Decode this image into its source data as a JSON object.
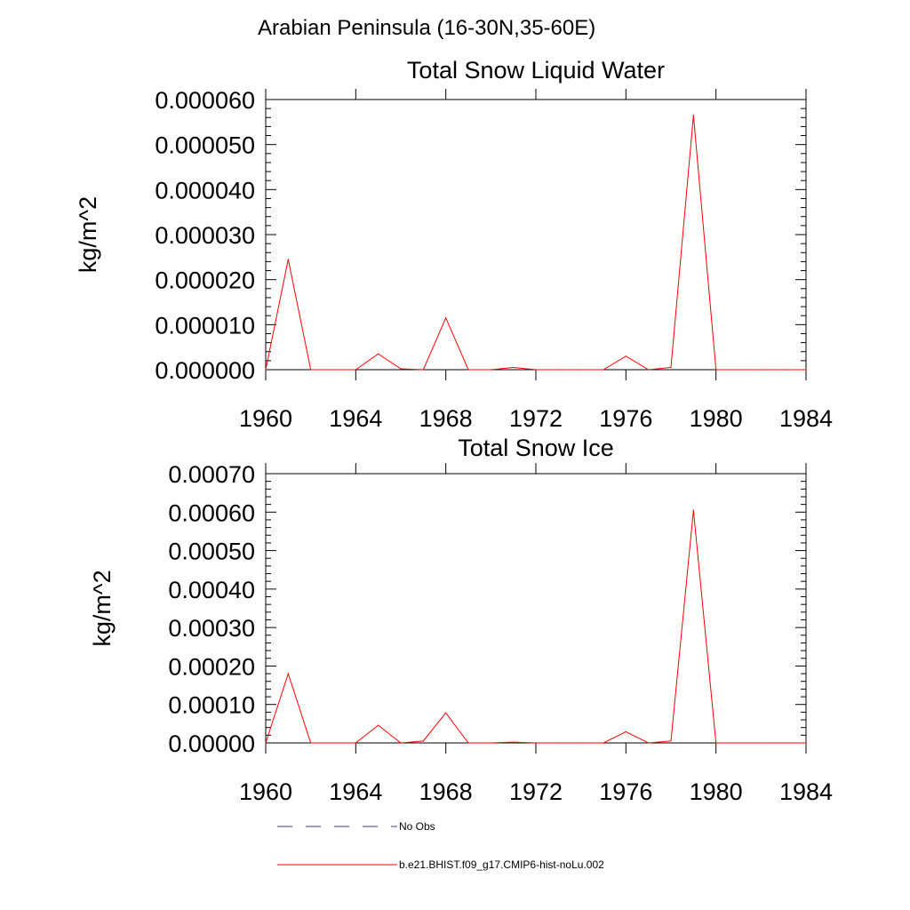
{
  "page": {
    "title": "Arabian Peninsula (16-30N,35-60E)"
  },
  "colors": {
    "series": "#ff0000",
    "obs": "#3a3a8c",
    "axis": "#000000"
  },
  "chart_data": [
    {
      "type": "line",
      "title": "Total Snow Liquid Water",
      "xlabel": "",
      "ylabel": "kg/m^2",
      "xlim": [
        1960,
        1984
      ],
      "ylim": [
        0.0,
        6e-05
      ],
      "xticks": [
        "1960",
        "1964",
        "1968",
        "1972",
        "1976",
        "1980",
        "1984"
      ],
      "yticks": [
        "0.000000",
        "0.000010",
        "0.000020",
        "0.000030",
        "0.000040",
        "0.000050",
        "0.000060"
      ],
      "x": [
        1960,
        1961,
        1962,
        1963,
        1964,
        1965,
        1966,
        1967,
        1968,
        1969,
        1970,
        1971,
        1972,
        1973,
        1974,
        1975,
        1976,
        1977,
        1978,
        1979,
        1980,
        1981,
        1982,
        1983,
        1984
      ],
      "series": [
        {
          "name": "b.e21.BHIST.f09_g17.CMIP6-hist-noLu.002",
          "values": [
            0.0,
            2.45e-05,
            0.0,
            0.0,
            0.0,
            3.5e-06,
            2e-07,
            0.0,
            1.15e-05,
            0.0,
            0.0,
            5e-07,
            0.0,
            0.0,
            0.0,
            0.0,
            3e-06,
            0.0,
            5e-07,
            5.65e-05,
            0.0,
            0.0,
            0.0,
            0.0,
            0.0
          ]
        }
      ]
    },
    {
      "type": "line",
      "title": "Total Snow Ice",
      "xlabel": "",
      "ylabel": "kg/m^2",
      "xlim": [
        1960,
        1984
      ],
      "ylim": [
        0.0,
        0.0007
      ],
      "xticks": [
        "1960",
        "1964",
        "1968",
        "1972",
        "1976",
        "1980",
        "1984"
      ],
      "yticks": [
        "0.00000",
        "0.00010",
        "0.00020",
        "0.00030",
        "0.00040",
        "0.00050",
        "0.00060",
        "0.00070"
      ],
      "x": [
        1960,
        1961,
        1962,
        1963,
        1964,
        1965,
        1966,
        1967,
        1968,
        1969,
        1970,
        1971,
        1972,
        1973,
        1974,
        1975,
        1976,
        1977,
        1978,
        1979,
        1980,
        1981,
        1982,
        1983,
        1984
      ],
      "series": [
        {
          "name": "b.e21.BHIST.f09_g17.CMIP6-hist-noLu.002",
          "values": [
            0.0,
            0.00018,
            0.0,
            0.0,
            0.0,
            4.6e-05,
            0.0,
            5e-06,
            7.8e-05,
            0.0,
            0.0,
            2e-06,
            0.0,
            0.0,
            0.0,
            0.0,
            2.9e-05,
            0.0,
            5e-06,
            0.000605,
            0.0,
            0.0,
            0.0,
            0.0,
            0.0
          ]
        }
      ]
    }
  ],
  "legend": {
    "obs_label": "No Obs",
    "series_label": "b.e21.BHIST.f09_g17.CMIP6-hist-noLu.002"
  }
}
